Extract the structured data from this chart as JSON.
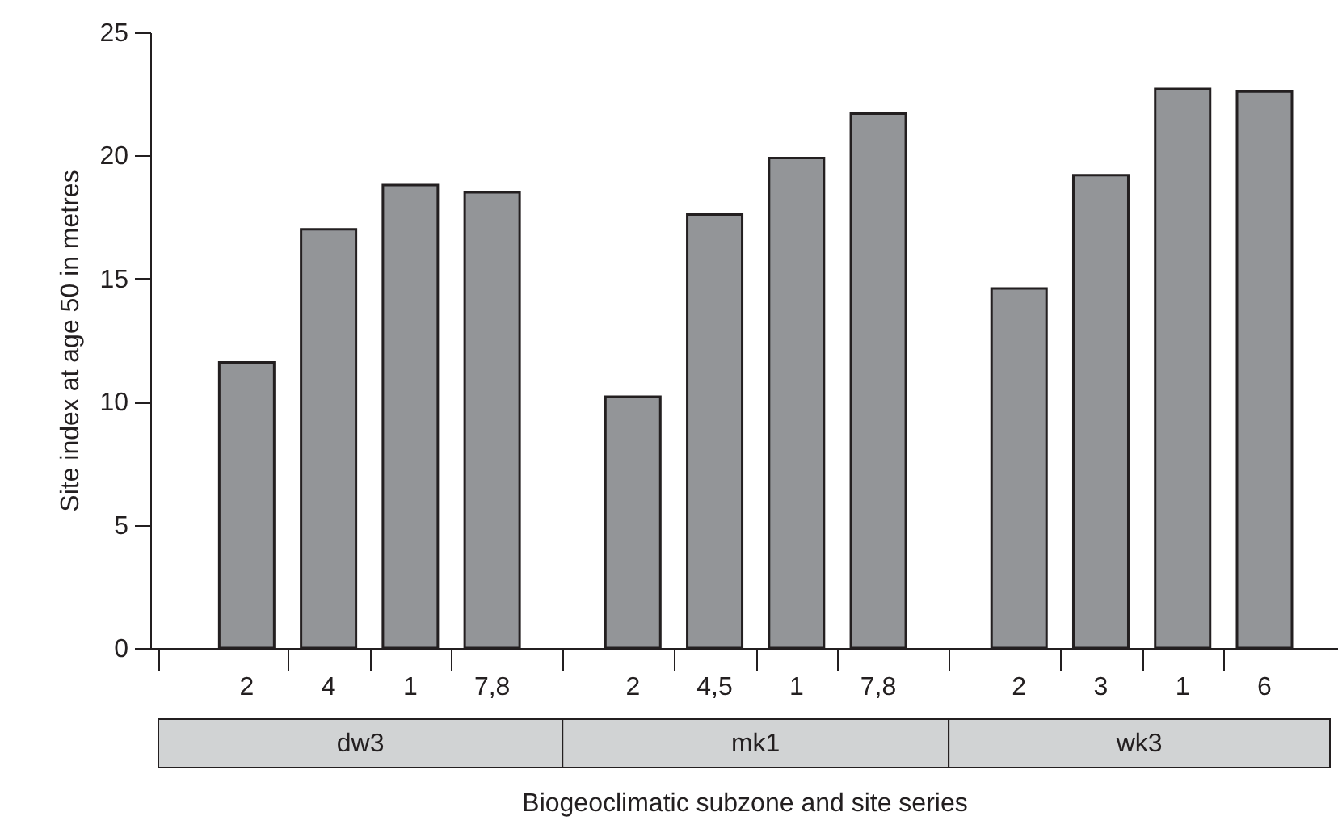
{
  "chart_data": {
    "type": "bar",
    "xlabel": "Biogeoclimatic subzone and site series",
    "ylabel": "Site index at age 50 in metres",
    "categories": [
      "2",
      "4",
      "1",
      "7,8",
      "2",
      "4,5",
      "1",
      "7,8",
      "2",
      "3",
      "1",
      "6"
    ],
    "values": [
      11.6,
      17.0,
      18.8,
      18.5,
      10.2,
      17.6,
      19.9,
      21.7,
      14.6,
      19.2,
      22.7,
      22.6
    ],
    "color": "#939598",
    "ylim": [
      0,
      25
    ],
    "yticks": [
      0,
      5,
      10,
      15,
      20,
      25
    ],
    "annotations": [
      "dw3",
      "mk1",
      "wk3"
    ]
  }
}
